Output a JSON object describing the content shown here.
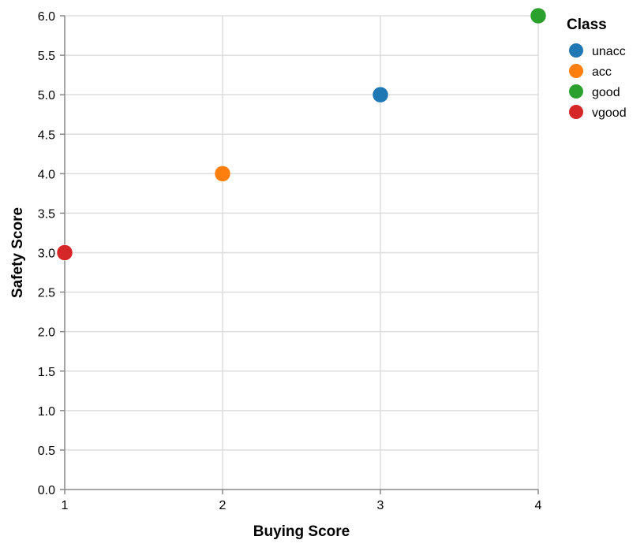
{
  "chart_data": {
    "type": "scatter",
    "xlabel": "Buying Score",
    "ylabel": "Safety Score",
    "xlim": [
      1,
      4
    ],
    "ylim": [
      0,
      6
    ],
    "x_ticks": [
      "1",
      "2",
      "3",
      "4"
    ],
    "y_ticks": [
      "0.0",
      "0.5",
      "1.0",
      "1.5",
      "2.0",
      "2.5",
      "3.0",
      "3.5",
      "4.0",
      "4.5",
      "5.0",
      "5.5",
      "6.0"
    ],
    "grid": true,
    "legend": {
      "title": "Class",
      "position": "right"
    },
    "series": [
      {
        "name": "unacc",
        "color": "#1f77b4",
        "points": [
          {
            "x": 3,
            "y": 5
          }
        ]
      },
      {
        "name": "acc",
        "color": "#ff7f0e",
        "points": [
          {
            "x": 2,
            "y": 4
          }
        ]
      },
      {
        "name": "good",
        "color": "#2ca02c",
        "points": [
          {
            "x": 4,
            "y": 6
          }
        ]
      },
      {
        "name": "vgood",
        "color": "#d62728",
        "points": [
          {
            "x": 1,
            "y": 3
          }
        ]
      }
    ]
  }
}
